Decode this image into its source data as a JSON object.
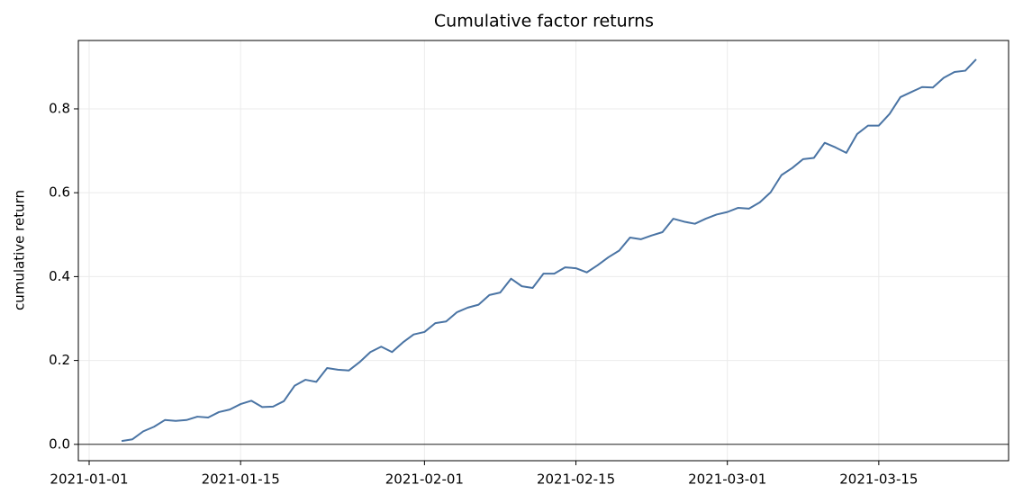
{
  "chart_data": {
    "type": "line",
    "title": "Cumulative factor returns",
    "ylabel": "cumulative return",
    "x": [
      "2021-01-04",
      "2021-01-05",
      "2021-01-06",
      "2021-01-07",
      "2021-01-08",
      "2021-01-09",
      "2021-01-10",
      "2021-01-11",
      "2021-01-12",
      "2021-01-13",
      "2021-01-14",
      "2021-01-15",
      "2021-01-16",
      "2021-01-17",
      "2021-01-18",
      "2021-01-19",
      "2021-01-20",
      "2021-01-21",
      "2021-01-22",
      "2021-01-23",
      "2021-01-24",
      "2021-01-25",
      "2021-01-26",
      "2021-01-27",
      "2021-01-28",
      "2021-01-29",
      "2021-01-30",
      "2021-01-31",
      "2021-02-01",
      "2021-02-02",
      "2021-02-03",
      "2021-02-04",
      "2021-02-05",
      "2021-02-06",
      "2021-02-07",
      "2021-02-08",
      "2021-02-09",
      "2021-02-10",
      "2021-02-11",
      "2021-02-12",
      "2021-02-13",
      "2021-02-14",
      "2021-02-15",
      "2021-02-16",
      "2021-02-17",
      "2021-02-18",
      "2021-02-19",
      "2021-02-20",
      "2021-02-21",
      "2021-02-22",
      "2021-02-23",
      "2021-02-24",
      "2021-02-25",
      "2021-02-26",
      "2021-02-27",
      "2021-02-28",
      "2021-03-01",
      "2021-03-02",
      "2021-03-03",
      "2021-03-04",
      "2021-03-05",
      "2021-03-06",
      "2021-03-07",
      "2021-03-08",
      "2021-03-09",
      "2021-03-10",
      "2021-03-11",
      "2021-03-12",
      "2021-03-13",
      "2021-03-14",
      "2021-03-15",
      "2021-03-16",
      "2021-03-17",
      "2021-03-18",
      "2021-03-19",
      "2021-03-20",
      "2021-03-21",
      "2021-03-22",
      "2021-03-23",
      "2021-03-24"
    ],
    "values": [
      0.008,
      0.012,
      0.031,
      0.042,
      0.058,
      0.056,
      0.058,
      0.066,
      0.064,
      0.077,
      0.083,
      0.096,
      0.104,
      0.089,
      0.09,
      0.103,
      0.14,
      0.154,
      0.149,
      0.182,
      0.178,
      0.176,
      0.196,
      0.22,
      0.233,
      0.22,
      0.243,
      0.262,
      0.268,
      0.289,
      0.293,
      0.315,
      0.326,
      0.333,
      0.356,
      0.362,
      0.395,
      0.377,
      0.373,
      0.407,
      0.407,
      0.422,
      0.42,
      0.41,
      0.427,
      0.446,
      0.462,
      0.493,
      0.489,
      0.498,
      0.506,
      0.538,
      0.531,
      0.526,
      0.538,
      0.548,
      0.554,
      0.564,
      0.562,
      0.577,
      0.601,
      0.642,
      0.659,
      0.68,
      0.683,
      0.719,
      0.708,
      0.695,
      0.74,
      0.76,
      0.76,
      0.788,
      0.828,
      0.84,
      0.852,
      0.851,
      0.874,
      0.888,
      0.891,
      0.918
    ],
    "color": "#4a74a4",
    "xlim": [
      "2020-12-31",
      "2021-03-27"
    ],
    "xticks": [
      "2021-01-01",
      "2021-01-15",
      "2021-02-01",
      "2021-02-15",
      "2021-03-01",
      "2021-03-15"
    ],
    "ylim": [
      -0.039,
      0.963
    ],
    "yticks": [
      {
        "value": 0,
        "label": "0.0"
      },
      0.2,
      0.4,
      0.6,
      0.8
    ],
    "hline": 0,
    "grid": true
  }
}
